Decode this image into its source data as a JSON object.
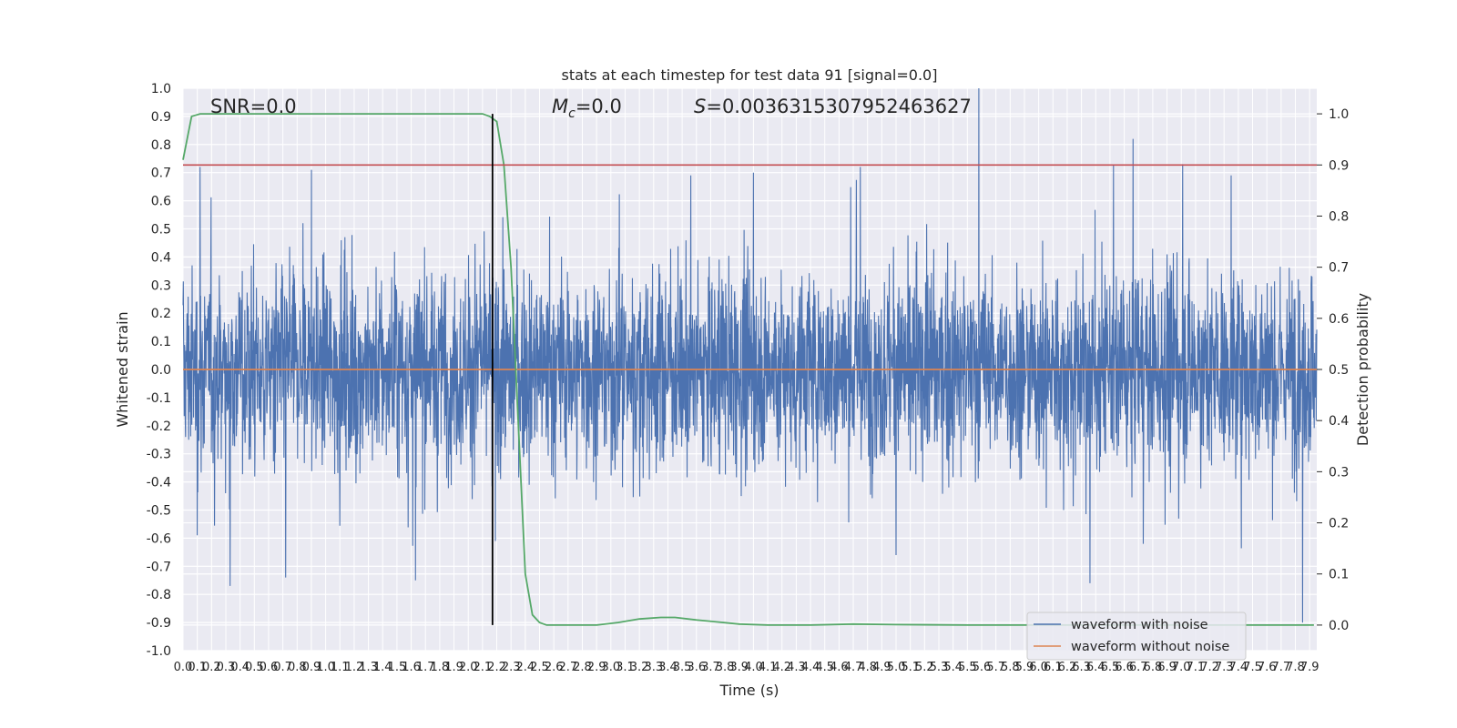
{
  "chart_data": {
    "type": "line",
    "title": "stats at each timestep for test data 91 [signal=0.0]",
    "xlabel": "Time (s)",
    "ylabel_left": "Whitened strain",
    "ylabel_right": "Detection probability",
    "xlim": [
      0.0,
      7.95
    ],
    "ylim_left": [
      -1.0,
      1.0
    ],
    "ylim_right": [
      -0.05,
      1.05
    ],
    "x_ticks": [
      "0.0",
      "0.1",
      "0.2",
      "0.3",
      "0.4",
      "0.5",
      "0.6",
      "0.7",
      "0.8",
      "0.9",
      "1.0",
      "1.1",
      "1.2",
      "1.3",
      "1.4",
      "1.5",
      "1.6",
      "1.7",
      "1.8",
      "1.9",
      "2.0",
      "2.1",
      "2.2",
      "2.3",
      "2.4",
      "2.5",
      "2.6",
      "2.7",
      "2.8",
      "2.9",
      "3.0",
      "3.1",
      "3.2",
      "3.3",
      "3.4",
      "3.5",
      "3.6",
      "3.7",
      "3.8",
      "3.9",
      "4.0",
      "4.1",
      "4.2",
      "4.3",
      "4.4",
      "4.5",
      "4.6",
      "4.7",
      "4.8",
      "4.9",
      "5.0",
      "5.1",
      "5.2",
      "5.3",
      "5.4",
      "5.5",
      "5.6",
      "5.7",
      "5.8",
      "5.9",
      "6.0",
      "6.1",
      "6.2",
      "6.3",
      "6.4",
      "6.5",
      "6.6",
      "6.7",
      "6.8",
      "6.9",
      "7.0",
      "7.1",
      "7.2",
      "7.3",
      "7.4",
      "7.5",
      "7.6",
      "7.7",
      "7.8",
      "7.9"
    ],
    "y_ticks_left": [
      "-1.0",
      "-0.9",
      "-0.8",
      "-0.7",
      "-0.6",
      "-0.5",
      "-0.4",
      "-0.3",
      "-0.2",
      "-0.1",
      "0.0",
      "0.1",
      "0.2",
      "0.3",
      "0.4",
      "0.5",
      "0.6",
      "0.7",
      "0.8",
      "0.9",
      "1.0"
    ],
    "y_ticks_right": [
      "0.0",
      "0.1",
      "0.2",
      "0.3",
      "0.4",
      "0.5",
      "0.6",
      "0.7",
      "0.8",
      "0.9",
      "1.0"
    ],
    "annotations": {
      "snr": "SNR=0.0",
      "mc_symbol": "M",
      "mc_sub": "c",
      "mc_value": "=0.0",
      "s_symbol": "S",
      "s_value": "=0.0036315307952463627"
    },
    "legend": {
      "position": "lower right",
      "entries": [
        "waveform with noise",
        "waveform without noise"
      ]
    },
    "series": [
      {
        "name": "waveform with noise",
        "axis": "left",
        "color": "#4c72b0",
        "kind": "noise",
        "samples": 4000,
        "typical_upper": 0.3,
        "typical_lower": -0.3,
        "peaks": [
          {
            "x": 0.1,
            "y": 0.6
          },
          {
            "x": 0.1,
            "y": -0.59
          },
          {
            "x": 0.12,
            "y": 0.72
          },
          {
            "x": 0.33,
            "y": -0.77
          },
          {
            "x": 0.72,
            "y": -0.74
          },
          {
            "x": 0.9,
            "y": 0.71
          },
          {
            "x": 1.63,
            "y": -0.75
          },
          {
            "x": 2.19,
            "y": -0.61
          },
          {
            "x": 3.56,
            "y": 0.69
          },
          {
            "x": 4.0,
            "y": 0.7
          },
          {
            "x": 4.75,
            "y": 0.72
          },
          {
            "x": 5.58,
            "y": 1.0
          },
          {
            "x": 6.36,
            "y": -0.76
          },
          {
            "x": 7.01,
            "y": 0.73
          },
          {
            "x": 7.35,
            "y": 0.69
          },
          {
            "x": 7.85,
            "y": -0.9
          }
        ]
      },
      {
        "name": "waveform without noise",
        "axis": "left",
        "color": "#dd8452",
        "kind": "line",
        "x": [
          0.0,
          7.95
        ],
        "y": [
          0.0,
          0.0
        ]
      },
      {
        "axis": "right",
        "color": "#55a868",
        "kind": "line",
        "x": [
          0.0,
          0.06,
          0.12,
          0.2,
          0.5,
          1.0,
          1.5,
          2.0,
          2.1,
          2.15,
          2.2,
          2.25,
          2.3,
          2.35,
          2.4,
          2.45,
          2.5,
          2.55,
          2.6,
          2.75,
          2.9,
          3.05,
          3.2,
          3.35,
          3.45,
          3.6,
          3.75,
          3.9,
          4.1,
          4.4,
          4.7,
          5.0,
          5.5,
          6.0,
          6.5,
          7.0,
          7.5,
          7.93
        ],
        "y": [
          0.91,
          0.995,
          1.0,
          1.0,
          1.0,
          1.0,
          1.0,
          1.0,
          1.0,
          0.995,
          0.985,
          0.9,
          0.7,
          0.4,
          0.1,
          0.02,
          0.005,
          0.0,
          0.0,
          0.0,
          0.0,
          0.005,
          0.012,
          0.015,
          0.015,
          0.01,
          0.006,
          0.002,
          0.0,
          0.0,
          0.002,
          0.001,
          0.0,
          0.0,
          0.0,
          0.0,
          0.0,
          0.0
        ]
      },
      {
        "axis": "right",
        "color": "#c44e52",
        "kind": "hline",
        "y": 0.9
      },
      {
        "axis": "right",
        "color": "#000000",
        "kind": "vline",
        "x": 2.17,
        "range": [
          0.0,
          1.0
        ]
      }
    ]
  }
}
